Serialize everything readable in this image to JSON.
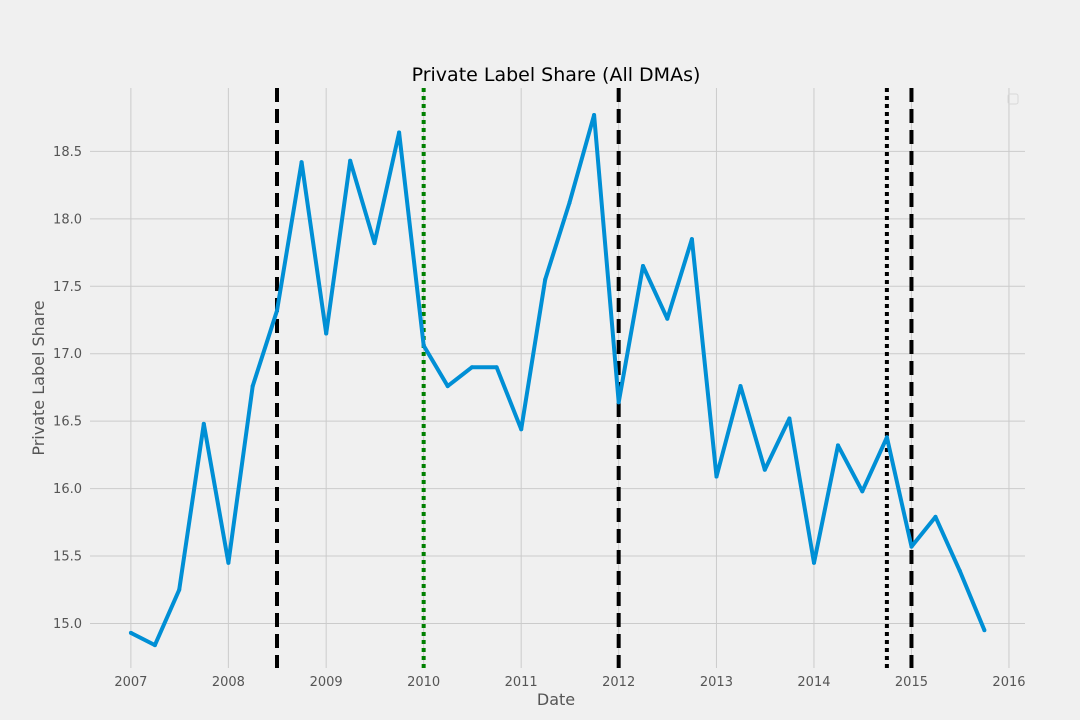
{
  "chart_data": {
    "type": "line",
    "title": "Private Label Share (All DMAs)",
    "xlabel": "Date",
    "ylabel": "Private Label Share",
    "x_ticks": [
      "2007",
      "2008",
      "2009",
      "2010",
      "2011",
      "2012",
      "2013",
      "2014",
      "2015",
      "2016"
    ],
    "y_ticks": [
      "15.0",
      "15.5",
      "16.0",
      "16.5",
      "17.0",
      "17.5",
      "18.0",
      "18.5"
    ],
    "xlim": [
      "2006-08-01",
      "2016-03-01"
    ],
    "ylim": [
      14.67,
      18.97
    ],
    "grid": true,
    "legend": "top-right, empty",
    "series": [
      {
        "color": "#008fd5",
        "x": [
          "2007-01-01",
          "2007-04-01",
          "2007-07-01",
          "2007-10-01",
          "2008-01-01",
          "2008-04-01",
          "2008-07-01",
          "2008-10-01",
          "2009-01-01",
          "2009-04-01",
          "2009-07-01",
          "2009-10-01",
          "2010-01-01",
          "2010-04-01",
          "2010-07-01",
          "2010-10-01",
          "2011-01-01",
          "2011-04-01",
          "2011-07-01",
          "2011-10-01",
          "2012-01-01",
          "2012-04-01",
          "2012-07-01",
          "2012-10-01",
          "2013-01-01",
          "2013-04-01",
          "2013-07-01",
          "2013-10-01",
          "2014-01-01",
          "2014-04-01",
          "2014-07-01",
          "2014-10-01",
          "2015-01-01",
          "2015-04-01",
          "2015-07-01",
          "2015-10-01"
        ],
        "values": [
          14.93,
          14.84,
          15.25,
          16.48,
          15.45,
          16.76,
          17.32,
          18.42,
          17.15,
          18.43,
          17.82,
          18.64,
          17.06,
          16.76,
          16.9,
          16.9,
          16.44,
          17.55,
          18.12,
          18.77,
          16.64,
          17.65,
          17.26,
          17.85,
          16.09,
          16.76,
          16.14,
          16.52,
          15.45,
          16.32,
          15.98,
          16.38,
          15.57,
          15.79,
          15.39,
          14.95
        ]
      }
    ],
    "vlines": [
      {
        "x": "2008-07-01",
        "color": "#000000",
        "style": "dashed"
      },
      {
        "x": "2010-01-01",
        "color": "#008000",
        "style": "dotted"
      },
      {
        "x": "2012-01-01",
        "color": "#000000",
        "style": "dashed"
      },
      {
        "x": "2014-10-01",
        "color": "#000000",
        "style": "dotted"
      },
      {
        "x": "2015-01-01",
        "color": "#000000",
        "style": "dashed"
      }
    ],
    "colors": {
      "background": "#f0f0f0",
      "grid": "#cbcbcb",
      "text": "#555555"
    }
  }
}
